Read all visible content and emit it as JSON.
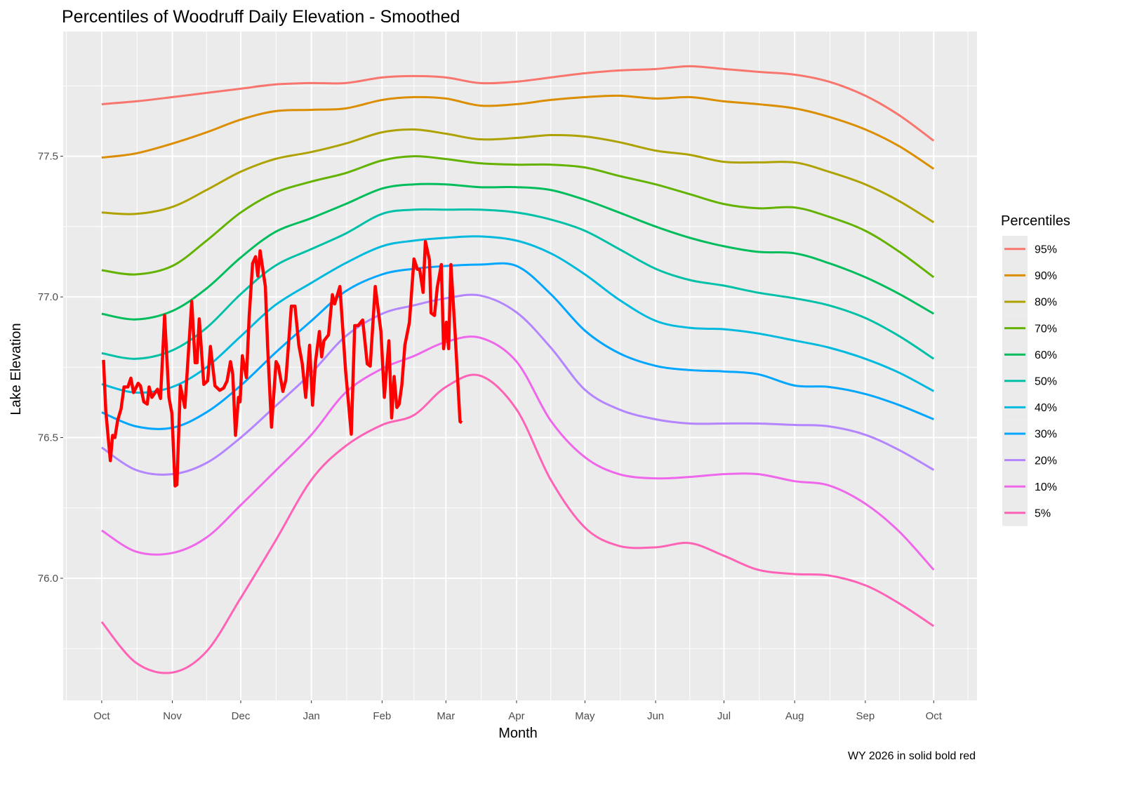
{
  "chart_data": {
    "type": "line",
    "title": "Percentiles of Woodruff Daily Elevation - Smoothed",
    "xlabel": "Month",
    "ylabel": "Lake Elevation",
    "caption": "WY 2026 in solid  bold red",
    "legend_title": "Percentiles",
    "legend_position": "right",
    "grid": true,
    "x_unit": "day of water year (0 = Oct 1)",
    "xlim": [
      -16.9,
      384
    ],
    "ylim": [
      75.566,
      77.943
    ],
    "x_ticks": [
      {
        "day": 0,
        "label": "Oct"
      },
      {
        "day": 31,
        "label": "Nov"
      },
      {
        "day": 61,
        "label": "Dec"
      },
      {
        "day": 92,
        "label": "Jan"
      },
      {
        "day": 123,
        "label": "Feb"
      },
      {
        "day": 151,
        "label": "Mar"
      },
      {
        "day": 182,
        "label": "Apr"
      },
      {
        "day": 212,
        "label": "May"
      },
      {
        "day": 243,
        "label": "Jun"
      },
      {
        "day": 273,
        "label": "Jul"
      },
      {
        "day": 304,
        "label": "Aug"
      },
      {
        "day": 335,
        "label": "Sep"
      },
      {
        "day": 365,
        "label": "Oct"
      }
    ],
    "y_ticks": [
      {
        "value": 76.0,
        "label": "76.0"
      },
      {
        "value": 76.5,
        "label": "76.5"
      },
      {
        "value": 77.0,
        "label": "77.0"
      },
      {
        "value": 77.5,
        "label": "77.5"
      }
    ],
    "x": [
      0,
      15,
      31,
      46,
      61,
      76,
      92,
      107,
      123,
      137,
      151,
      166,
      182,
      197,
      212,
      227,
      243,
      258,
      273,
      288,
      304,
      319,
      335,
      350,
      365
    ],
    "series": [
      {
        "name": "95%",
        "color": "#F8766D",
        "values": [
          77.685,
          77.695,
          77.71,
          77.725,
          77.74,
          77.755,
          77.76,
          77.76,
          77.78,
          77.785,
          77.78,
          77.76,
          77.765,
          77.78,
          77.795,
          77.805,
          77.81,
          77.82,
          77.81,
          77.8,
          77.79,
          77.765,
          77.715,
          77.645,
          77.555
        ]
      },
      {
        "name": "90%",
        "color": "#DB8E00",
        "values": [
          77.495,
          77.51,
          77.545,
          77.585,
          77.63,
          77.66,
          77.665,
          77.67,
          77.7,
          77.71,
          77.705,
          77.68,
          77.685,
          77.7,
          77.71,
          77.715,
          77.705,
          77.71,
          77.695,
          77.685,
          77.67,
          77.64,
          77.595,
          77.535,
          77.455
        ]
      },
      {
        "name": "80%",
        "color": "#AEA200",
        "values": [
          77.3,
          77.295,
          77.32,
          77.38,
          77.445,
          77.49,
          77.515,
          77.545,
          77.585,
          77.595,
          77.58,
          77.56,
          77.565,
          77.575,
          77.57,
          77.55,
          77.52,
          77.505,
          77.48,
          77.478,
          77.478,
          77.445,
          77.4,
          77.34,
          77.265
        ]
      },
      {
        "name": "70%",
        "color": "#64B200",
        "values": [
          77.095,
          77.08,
          77.11,
          77.2,
          77.3,
          77.37,
          77.41,
          77.44,
          77.485,
          77.5,
          77.49,
          77.475,
          77.47,
          77.47,
          77.46,
          77.43,
          77.4,
          77.365,
          77.33,
          77.315,
          77.318,
          77.285,
          77.235,
          77.16,
          77.07
        ]
      },
      {
        "name": "60%",
        "color": "#00BD5C",
        "values": [
          76.94,
          76.92,
          76.95,
          77.03,
          77.14,
          77.23,
          77.28,
          77.33,
          77.385,
          77.4,
          77.4,
          77.39,
          77.39,
          77.38,
          77.345,
          77.3,
          77.25,
          77.21,
          77.18,
          77.16,
          77.155,
          77.12,
          77.07,
          77.01,
          76.94
        ]
      },
      {
        "name": "50%",
        "color": "#00C1A7",
        "values": [
          76.8,
          76.78,
          76.81,
          76.89,
          77.01,
          77.11,
          77.17,
          77.225,
          77.295,
          77.31,
          77.31,
          77.31,
          77.3,
          77.275,
          77.235,
          77.17,
          77.1,
          77.06,
          77.04,
          77.015,
          76.995,
          76.97,
          76.925,
          76.86,
          76.78
        ]
      },
      {
        "name": "40%",
        "color": "#00BADE",
        "values": [
          76.69,
          76.66,
          76.68,
          76.75,
          76.86,
          76.97,
          77.05,
          77.12,
          77.18,
          77.2,
          77.21,
          77.215,
          77.2,
          77.155,
          77.08,
          76.99,
          76.915,
          76.89,
          76.885,
          76.87,
          76.845,
          76.82,
          76.78,
          76.73,
          76.665
        ]
      },
      {
        "name": "30%",
        "color": "#00A6FF",
        "values": [
          76.59,
          76.54,
          76.535,
          76.59,
          76.685,
          76.8,
          76.915,
          77.02,
          77.08,
          77.1,
          77.11,
          77.115,
          77.11,
          77.01,
          76.88,
          76.8,
          76.755,
          76.74,
          76.735,
          76.725,
          76.685,
          76.68,
          76.655,
          76.615,
          76.565
        ]
      },
      {
        "name": "20%",
        "color": "#B385FF",
        "values": [
          76.465,
          76.385,
          76.37,
          76.41,
          76.5,
          76.61,
          76.73,
          76.86,
          76.94,
          76.97,
          76.995,
          77.005,
          76.945,
          76.82,
          76.67,
          76.6,
          76.565,
          76.55,
          76.55,
          76.55,
          76.545,
          76.54,
          76.51,
          76.455,
          76.385
        ]
      },
      {
        "name": "10%",
        "color": "#EF67EB",
        "values": [
          76.17,
          76.095,
          76.09,
          76.145,
          76.26,
          76.38,
          76.51,
          76.66,
          76.745,
          76.79,
          76.84,
          76.855,
          76.77,
          76.56,
          76.43,
          76.37,
          76.355,
          76.36,
          76.37,
          76.37,
          76.345,
          76.33,
          76.265,
          76.165,
          76.03
        ]
      },
      {
        "name": " 5%",
        "color": "#FF63B6",
        "values": [
          75.845,
          75.7,
          75.665,
          75.74,
          75.93,
          76.13,
          76.35,
          76.47,
          76.545,
          76.58,
          76.68,
          76.72,
          76.6,
          76.35,
          76.18,
          76.115,
          76.11,
          76.125,
          76.08,
          76.03,
          76.015,
          76.01,
          75.975,
          75.91,
          75.83
        ]
      }
    ],
    "current_year": {
      "name": "WY 2026",
      "color": "#FF0000",
      "x": [
        0.8,
        1.8,
        3.8,
        4.8,
        5.8,
        7,
        8.5,
        9.8,
        11.5,
        12.8,
        14,
        16,
        17,
        18.5,
        20,
        20.8,
        22,
        24.5,
        25.8,
        27.6,
        29.5,
        30.8,
        32.2,
        33,
        34.5,
        36.5,
        39.5,
        41,
        41.8,
        42.8,
        44.8,
        46.5,
        47.7,
        49.7,
        51.8,
        53.5,
        55,
        56.5,
        57.5,
        58.7,
        60,
        60.7,
        61.7,
        63.5,
        64.7,
        66.2,
        67.5,
        68.5,
        69.5,
        71.8,
        72.8,
        74.5,
        76.5,
        77.5,
        79.5,
        80.8,
        83.2,
        84.8,
        86.5,
        88,
        89.5,
        91.2,
        92.5,
        93.8,
        95.5,
        96.5,
        97.5,
        99.5,
        101.2,
        102.2,
        104.5,
        107,
        109.5,
        111,
        112.5,
        114.5,
        116.5,
        117.8,
        120,
        122.5,
        124,
        126,
        127.2,
        128.3,
        129.5,
        130.5,
        131.7,
        133,
        135,
        137,
        138.5,
        139.5,
        141,
        142,
        143.8,
        144.5,
        146,
        147.2,
        149,
        150,
        151.2,
        152.2,
        153.2,
        155,
        157.2,
        158
      ],
      "values": [
        76.776,
        76.594,
        76.418,
        76.508,
        76.5,
        76.561,
        76.602,
        76.68,
        76.68,
        76.711,
        76.66,
        76.693,
        76.684,
        76.627,
        76.619,
        76.68,
        76.643,
        76.672,
        76.639,
        76.934,
        76.643,
        76.586,
        76.328,
        76.332,
        76.684,
        76.607,
        76.984,
        76.766,
        76.766,
        76.922,
        76.689,
        76.702,
        76.824,
        76.684,
        76.668,
        76.676,
        76.701,
        76.77,
        76.725,
        76.508,
        76.643,
        76.627,
        76.791,
        76.713,
        76.93,
        77.119,
        77.143,
        77.074,
        77.164,
        77.037,
        76.824,
        76.537,
        76.77,
        76.754,
        76.664,
        76.705,
        76.967,
        76.967,
        76.828,
        76.762,
        76.643,
        76.828,
        76.615,
        76.77,
        76.877,
        76.787,
        76.844,
        76.865,
        77.008,
        76.975,
        77.037,
        76.738,
        76.512,
        76.898,
        76.898,
        76.918,
        76.762,
        76.754,
        77.037,
        76.877,
        76.643,
        76.844,
        76.57,
        76.717,
        76.607,
        76.619,
        76.689,
        76.828,
        76.91,
        77.135,
        77.098,
        77.098,
        77.016,
        77.197,
        77.131,
        76.943,
        76.934,
        77.033,
        77.115,
        76.816,
        76.91,
        76.816,
        77.115,
        76.877,
        76.557,
        76.553
      ]
    }
  }
}
